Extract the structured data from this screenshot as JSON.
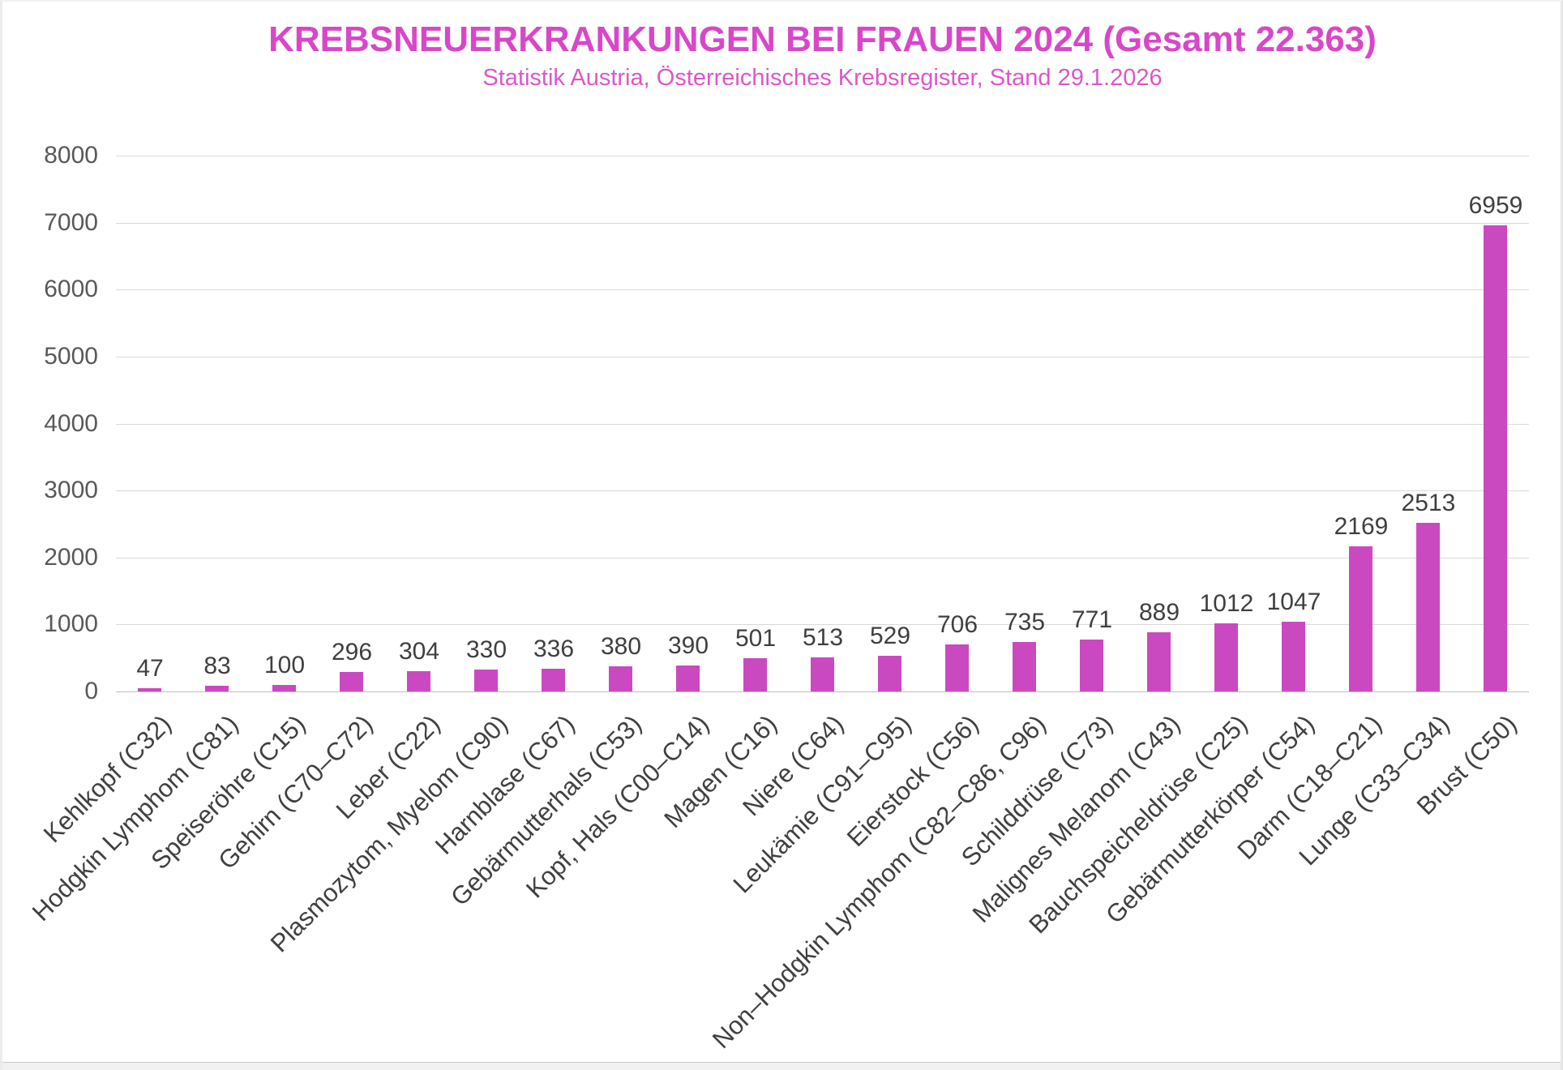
{
  "colors": {
    "bar": "#cb49c0",
    "title": "#d847c8",
    "subtitle": "#da58ca",
    "gridline": "#d9d9d9",
    "axis_line": "#bfbfbf",
    "axis_tick_text": "#595959",
    "value_label_text": "#3f3f3f",
    "category_label_text": "#404040"
  },
  "chart_data": {
    "type": "bar",
    "title": "KREBSNEUERKRANKUNGEN BEI FRAUEN 2024 (Gesamt 22.363)",
    "subtitle": "Statistik Austria, Österreichisches Krebsregister, Stand 29.1.2026",
    "categories": [
      "Kehlkopf (C32)",
      "Hodgkin Lymphom (C81)",
      "Speiseröhre (C15)",
      "Gehirn (C70–C72)",
      "Leber (C22)",
      "Plasmozytom, Myelom (C90)",
      "Harnblase (C67)",
      "Gebärmutterhals (C53)",
      "Kopf, Hals (C00–C14)",
      "Magen (C16)",
      "Niere (C64)",
      "Leukämie (C91–C95)",
      "Eierstock (C56)",
      "Non–Hodgkin Lymphom (C82–C86, C96)",
      "Schilddrüse (C73)",
      "Malignes Melanom (C43)",
      "Bauchspeicheldrüse (C25)",
      "Gebärmutterkörper (C54)",
      "Darm (C18–C21)",
      "Lunge (C33–C34)",
      "Brust (C50)"
    ],
    "values": [
      47,
      83,
      100,
      296,
      304,
      330,
      336,
      380,
      390,
      501,
      513,
      529,
      706,
      735,
      771,
      889,
      1012,
      1047,
      2169,
      2513,
      6959
    ],
    "data_labels_shown": true,
    "xlabel": "",
    "ylabel": "",
    "ylim": [
      0,
      8000
    ],
    "ytick_step": 1000,
    "yticks": [
      0,
      1000,
      2000,
      3000,
      4000,
      5000,
      6000,
      7000,
      8000
    ],
    "grid": "horizontal",
    "legend": "none",
    "bar_orientation": "vertical",
    "category_label_rotation_deg": 45
  }
}
